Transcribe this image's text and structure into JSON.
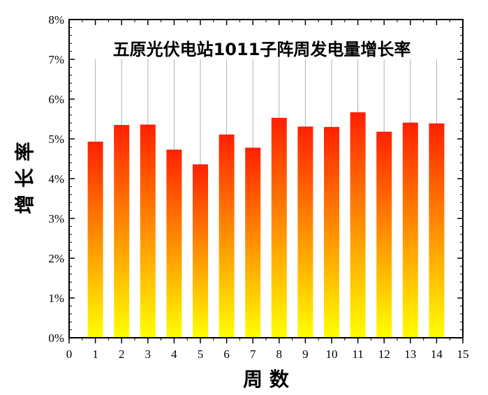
{
  "chart_data": {
    "type": "bar",
    "title": "五原光伏电站1011子阵周发电量增长率",
    "xlabel": "周 数",
    "ylabel": "增 长 率",
    "x": [
      1,
      2,
      3,
      4,
      5,
      6,
      7,
      8,
      9,
      10,
      11,
      12,
      13,
      14
    ],
    "values": [
      4.93,
      5.35,
      5.36,
      4.73,
      4.36,
      5.11,
      4.78,
      5.53,
      5.31,
      5.3,
      5.67,
      5.18,
      5.41,
      5.39
    ],
    "xlim": [
      0,
      15
    ],
    "ylim": [
      0,
      8
    ],
    "x_ticks": [
      "0",
      "1",
      "2",
      "3",
      "4",
      "5",
      "6",
      "7",
      "8",
      "9",
      "10",
      "11",
      "12",
      "13",
      "14",
      "15"
    ],
    "y_ticks": [
      "0%",
      "1%",
      "2%",
      "3%",
      "4%",
      "5%",
      "6%",
      "7%",
      "8%"
    ],
    "bar_gradient": {
      "top": "#ff2000",
      "bottom": "#ffff00"
    },
    "grid": "vertical lines at bars"
  }
}
